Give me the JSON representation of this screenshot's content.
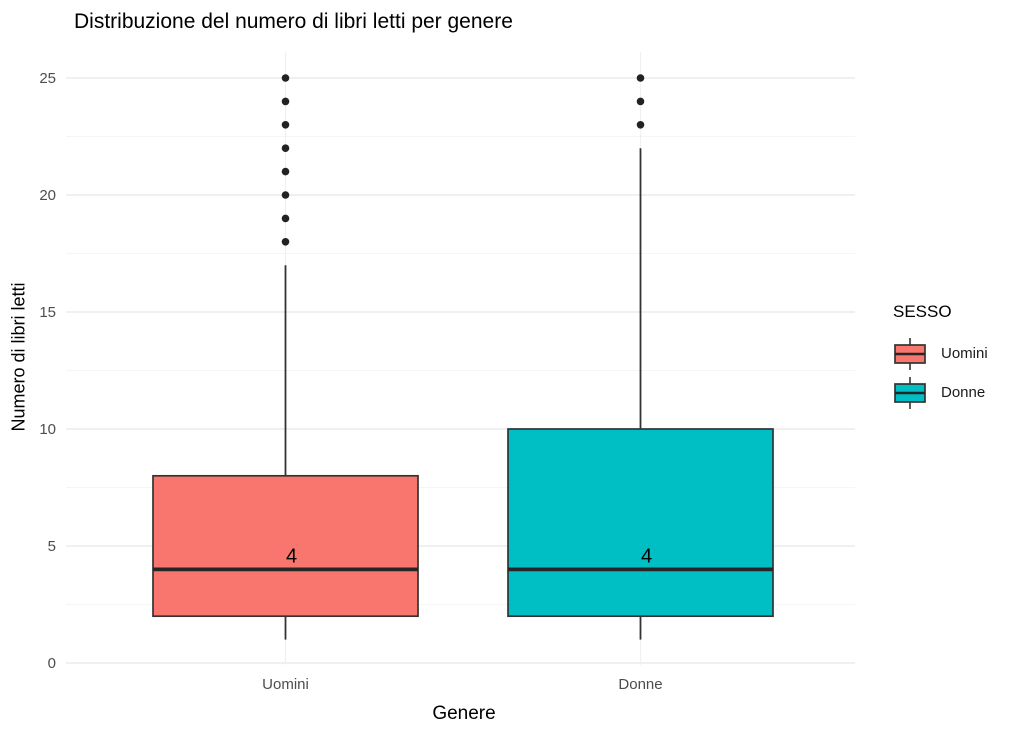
{
  "chart_data": {
    "type": "boxplot",
    "title": "Distribuzione del numero di libri letti per genere",
    "xlabel": "Genere",
    "ylabel": "Numero di libri letti",
    "categories": [
      "Uomini",
      "Donne"
    ],
    "y_ticks": [
      0,
      5,
      10,
      15,
      20,
      25
    ],
    "y_minor_ticks": [
      2.5,
      7.5,
      12.5,
      17.5,
      22.5
    ],
    "ylim": [
      0,
      25
    ],
    "grid": "on",
    "legend_position": "right",
    "series": [
      {
        "name": "Uomini",
        "color": "#F8766D",
        "whisker_low": 1,
        "q1": 2,
        "median": 4,
        "q3": 8,
        "whisker_high": 17,
        "outliers": [
          18,
          19,
          20,
          21,
          22,
          23,
          24,
          25
        ],
        "median_label": "4"
      },
      {
        "name": "Donne",
        "color": "#00BFC4",
        "whisker_low": 1,
        "q1": 2,
        "median": 4,
        "q3": 10,
        "whisker_high": 22,
        "outliers": [
          23,
          24,
          25
        ],
        "median_label": "4"
      }
    ],
    "legend": {
      "title": "SESSO",
      "entries": [
        {
          "label": "Uomini",
          "color": "#F8766D"
        },
        {
          "label": "Donne",
          "color": "#00BFC4"
        }
      ]
    },
    "colors": {
      "box_border": "#333333",
      "median_line": "#262626",
      "outlier": "#222222",
      "gridline_major": "#EBEBEB",
      "gridline_minor": "#F5F5F5",
      "tick_label": "#4D4D4D",
      "title_text": "#000000",
      "background": "#FFFFFF"
    }
  }
}
